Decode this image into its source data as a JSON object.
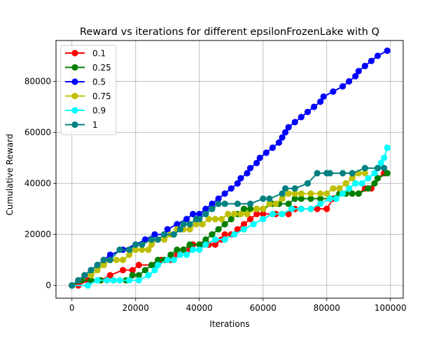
{
  "chart_data": {
    "type": "line",
    "title": "Reward vs iterations for different epsilonFrozenLake with Q",
    "xlabel": "Iterations",
    "ylabel": "Cumulative Reward",
    "xlim": [
      -5000,
      104000
    ],
    "ylim": [
      -5000,
      96000
    ],
    "xticks": [
      0,
      20000,
      40000,
      60000,
      80000,
      100000
    ],
    "yticks": [
      0,
      20000,
      40000,
      60000,
      80000
    ],
    "grid": true,
    "legend_position": "top-left",
    "series": [
      {
        "name": "0.1",
        "color": "#ff0000",
        "points": [
          [
            0,
            0
          ],
          [
            2000,
            0
          ],
          [
            5000,
            2000
          ],
          [
            9000,
            2000
          ],
          [
            12000,
            4000
          ],
          [
            16000,
            6000
          ],
          [
            19000,
            6000
          ],
          [
            21000,
            8000
          ],
          [
            26000,
            8000
          ],
          [
            28000,
            10000
          ],
          [
            31000,
            10000
          ],
          [
            33000,
            12000
          ],
          [
            35000,
            14000
          ],
          [
            37000,
            14000
          ],
          [
            38000,
            16000
          ],
          [
            41000,
            16000
          ],
          [
            43000,
            16000
          ],
          [
            45000,
            16000
          ],
          [
            47000,
            18000
          ],
          [
            48000,
            20000
          ],
          [
            50000,
            20000
          ],
          [
            52000,
            22000
          ],
          [
            54000,
            24000
          ],
          [
            56000,
            26000
          ],
          [
            58000,
            28000
          ],
          [
            60000,
            28000
          ],
          [
            64000,
            28000
          ],
          [
            66000,
            28000
          ],
          [
            68000,
            28000
          ],
          [
            70000,
            30000
          ],
          [
            72000,
            30000
          ],
          [
            75000,
            30000
          ],
          [
            77000,
            30000
          ],
          [
            80000,
            30000
          ],
          [
            82000,
            34000
          ],
          [
            84000,
            36000
          ],
          [
            86000,
            36000
          ],
          [
            88000,
            36000
          ],
          [
            90000,
            36000
          ],
          [
            92000,
            38000
          ],
          [
            94000,
            38000
          ],
          [
            96000,
            42000
          ],
          [
            98000,
            44000
          ]
        ]
      },
      {
        "name": "0.25",
        "color": "#008000",
        "points": [
          [
            0,
            0
          ],
          [
            3000,
            2000
          ],
          [
            6000,
            2000
          ],
          [
            9000,
            2000
          ],
          [
            13000,
            2000
          ],
          [
            17000,
            2000
          ],
          [
            19000,
            4000
          ],
          [
            21000,
            4000
          ],
          [
            23000,
            6000
          ],
          [
            25000,
            8000
          ],
          [
            27000,
            10000
          ],
          [
            29000,
            10000
          ],
          [
            31000,
            12000
          ],
          [
            33000,
            14000
          ],
          [
            35000,
            14000
          ],
          [
            37000,
            16000
          ],
          [
            40000,
            16000
          ],
          [
            42000,
            18000
          ],
          [
            44000,
            20000
          ],
          [
            46000,
            22000
          ],
          [
            48000,
            24000
          ],
          [
            50000,
            26000
          ],
          [
            52000,
            28000
          ],
          [
            54000,
            30000
          ],
          [
            56000,
            30000
          ],
          [
            58000,
            30000
          ],
          [
            60000,
            30000
          ],
          [
            63000,
            32000
          ],
          [
            65000,
            32000
          ],
          [
            68000,
            32000
          ],
          [
            70000,
            34000
          ],
          [
            72000,
            34000
          ],
          [
            75000,
            34000
          ],
          [
            78000,
            34000
          ],
          [
            81000,
            34000
          ],
          [
            84000,
            36000
          ],
          [
            86000,
            36000
          ],
          [
            88000,
            36000
          ],
          [
            90000,
            36000
          ],
          [
            93000,
            38000
          ],
          [
            95000,
            40000
          ],
          [
            96000,
            42000
          ],
          [
            99000,
            44000
          ]
        ]
      },
      {
        "name": "0.5",
        "color": "#0000ff",
        "points": [
          [
            0,
            0
          ],
          [
            2000,
            2000
          ],
          [
            4000,
            4000
          ],
          [
            6000,
            6000
          ],
          [
            8000,
            8000
          ],
          [
            10000,
            10000
          ],
          [
            12000,
            12000
          ],
          [
            16000,
            14000
          ],
          [
            20000,
            16000
          ],
          [
            23000,
            18000
          ],
          [
            26000,
            20000
          ],
          [
            29000,
            20000
          ],
          [
            30000,
            22000
          ],
          [
            33000,
            24000
          ],
          [
            36000,
            26000
          ],
          [
            38000,
            28000
          ],
          [
            40000,
            28000
          ],
          [
            42000,
            30000
          ],
          [
            44000,
            32000
          ],
          [
            46000,
            34000
          ],
          [
            48000,
            36000
          ],
          [
            50000,
            38000
          ],
          [
            52000,
            40000
          ],
          [
            53000,
            42000
          ],
          [
            55000,
            44000
          ],
          [
            56000,
            46000
          ],
          [
            58000,
            48000
          ],
          [
            59000,
            50000
          ],
          [
            61000,
            52000
          ],
          [
            63000,
            54000
          ],
          [
            65000,
            56000
          ],
          [
            66000,
            58000
          ],
          [
            67000,
            60000
          ],
          [
            68000,
            62000
          ],
          [
            70000,
            64000
          ],
          [
            72000,
            66000
          ],
          [
            74000,
            68000
          ],
          [
            76000,
            70000
          ],
          [
            78000,
            72000
          ],
          [
            79000,
            74000
          ],
          [
            82000,
            76000
          ],
          [
            85000,
            78000
          ],
          [
            87000,
            80000
          ],
          [
            89000,
            82000
          ],
          [
            90000,
            84000
          ],
          [
            92000,
            86000
          ],
          [
            94000,
            88000
          ],
          [
            96000,
            90000
          ],
          [
            99000,
            92000
          ]
        ]
      },
      {
        "name": "0.75",
        "color": "#bfbf00",
        "points": [
          [
            0,
            0
          ],
          [
            2000,
            2000
          ],
          [
            4000,
            4000
          ],
          [
            6000,
            4000
          ],
          [
            8000,
            6000
          ],
          [
            10000,
            8000
          ],
          [
            12000,
            10000
          ],
          [
            14000,
            10000
          ],
          [
            16000,
            10000
          ],
          [
            18000,
            12000
          ],
          [
            20000,
            14000
          ],
          [
            22000,
            14000
          ],
          [
            24000,
            14000
          ],
          [
            25000,
            16000
          ],
          [
            27000,
            18000
          ],
          [
            29000,
            18000
          ],
          [
            31000,
            20000
          ],
          [
            33000,
            22000
          ],
          [
            35000,
            22000
          ],
          [
            37000,
            22000
          ],
          [
            39000,
            24000
          ],
          [
            41000,
            24000
          ],
          [
            43000,
            26000
          ],
          [
            45000,
            26000
          ],
          [
            47000,
            26000
          ],
          [
            49000,
            28000
          ],
          [
            51000,
            28000
          ],
          [
            53000,
            28000
          ],
          [
            55000,
            28000
          ],
          [
            58000,
            30000
          ],
          [
            60000,
            30000
          ],
          [
            62000,
            32000
          ],
          [
            64000,
            32000
          ],
          [
            66000,
            34000
          ],
          [
            68000,
            36000
          ],
          [
            70000,
            36000
          ],
          [
            72000,
            36000
          ],
          [
            75000,
            36000
          ],
          [
            78000,
            36000
          ],
          [
            80000,
            36000
          ],
          [
            82000,
            38000
          ],
          [
            84000,
            38000
          ],
          [
            86000,
            40000
          ],
          [
            88000,
            42000
          ],
          [
            90000,
            44000
          ],
          [
            92000,
            44000
          ]
        ]
      },
      {
        "name": "0.9",
        "color": "#00ffff",
        "points": [
          [
            0,
            0
          ],
          [
            5000,
            0
          ],
          [
            8000,
            2000
          ],
          [
            11000,
            2000
          ],
          [
            13000,
            2000
          ],
          [
            15000,
            2000
          ],
          [
            18000,
            2000
          ],
          [
            21000,
            2000
          ],
          [
            24000,
            4000
          ],
          [
            26000,
            6000
          ],
          [
            27000,
            8000
          ],
          [
            30000,
            10000
          ],
          [
            32000,
            10000
          ],
          [
            34000,
            12000
          ],
          [
            36000,
            12000
          ],
          [
            38000,
            14000
          ],
          [
            40000,
            14000
          ],
          [
            42000,
            16000
          ],
          [
            45000,
            18000
          ],
          [
            48000,
            18000
          ],
          [
            51000,
            20000
          ],
          [
            54000,
            22000
          ],
          [
            57000,
            24000
          ],
          [
            60000,
            26000
          ],
          [
            63000,
            28000
          ],
          [
            66000,
            28000
          ],
          [
            69000,
            30000
          ],
          [
            72000,
            30000
          ],
          [
            75000,
            30000
          ],
          [
            78000,
            32000
          ],
          [
            81000,
            34000
          ],
          [
            83000,
            34000
          ],
          [
            85000,
            36000
          ],
          [
            87000,
            38000
          ],
          [
            89000,
            40000
          ],
          [
            91000,
            40000
          ],
          [
            93000,
            42000
          ],
          [
            95000,
            44000
          ],
          [
            96000,
            46000
          ],
          [
            97000,
            48000
          ],
          [
            98000,
            50000
          ],
          [
            99000,
            54000
          ]
        ]
      },
      {
        "name": "1",
        "color": "#008080",
        "points": [
          [
            0,
            0
          ],
          [
            2000,
            2000
          ],
          [
            4000,
            4000
          ],
          [
            6000,
            6000
          ],
          [
            8000,
            8000
          ],
          [
            10000,
            10000
          ],
          [
            12000,
            10000
          ],
          [
            15000,
            14000
          ],
          [
            18000,
            14000
          ],
          [
            20000,
            16000
          ],
          [
            22000,
            16000
          ],
          [
            25000,
            18000
          ],
          [
            27000,
            18000
          ],
          [
            29000,
            20000
          ],
          [
            32000,
            20000
          ],
          [
            34000,
            22000
          ],
          [
            35000,
            24000
          ],
          [
            37000,
            24000
          ],
          [
            39000,
            26000
          ],
          [
            40000,
            26000
          ],
          [
            42000,
            28000
          ],
          [
            44000,
            30000
          ],
          [
            46000,
            32000
          ],
          [
            48000,
            32000
          ],
          [
            52000,
            32000
          ],
          [
            56000,
            32000
          ],
          [
            60000,
            34000
          ],
          [
            62000,
            34000
          ],
          [
            66000,
            36000
          ],
          [
            67000,
            38000
          ],
          [
            70000,
            38000
          ],
          [
            74000,
            40000
          ],
          [
            77000,
            44000
          ],
          [
            80000,
            44000
          ],
          [
            81000,
            44000
          ],
          [
            85000,
            44000
          ],
          [
            88000,
            44000
          ],
          [
            92000,
            46000
          ],
          [
            96000,
            46000
          ],
          [
            98000,
            46000
          ]
        ]
      }
    ]
  }
}
